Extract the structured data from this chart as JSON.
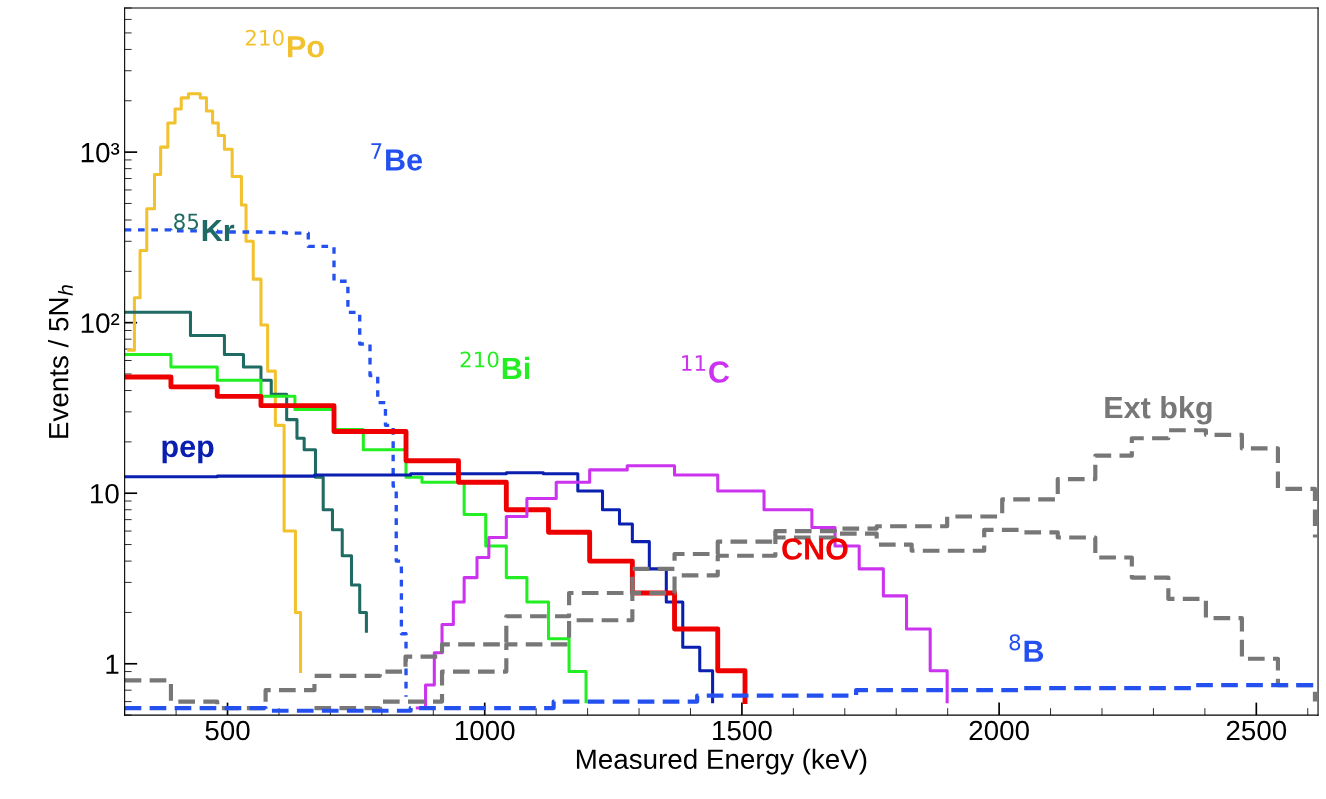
{
  "chart_data": {
    "type": "step",
    "xlabel": "Measured Energy (keV)",
    "ylabel": "Events / 5N$_{h}$",
    "log": "y",
    "grid": false,
    "legend": false,
    "xlim": [
      300,
      2620
    ],
    "xticks": [
      500,
      1000,
      1500,
      2000,
      2500
    ],
    "ylim": [
      0.5,
      7000
    ],
    "yticks": [
      1,
      10,
      {
        "value": 100,
        "label": "10²"
      },
      {
        "value": 1000,
        "label": "10³"
      }
    ],
    "series": [
      {
        "name": "$^{210}$Po",
        "color": "#f2c12e",
        "line_style": "solid",
        "x": [
          308,
          319,
          330,
          343,
          358,
          370,
          384,
          398,
          410,
          424,
          447,
          459,
          471,
          482,
          494,
          509,
          527,
          536,
          550,
          565,
          578,
          593,
          610,
          632,
          642
        ],
        "values": [
          69,
          140,
          265,
          465,
          740,
          1070,
          1480,
          1790,
          2080,
          2200,
          2080,
          1740,
          1480,
          1250,
          1040,
          720,
          490,
          300,
          180,
          97,
          52,
          25,
          6,
          2,
          0.9
        ]
      },
      {
        "name": "$^{7}$Be",
        "color": "#2450f0",
        "line_style": "dotted",
        "x": [
          300,
          390,
          480,
          574,
          613,
          657,
          707,
          734,
          757,
          777,
          792,
          807,
          822,
          828,
          838,
          847
        ],
        "values": [
          350,
          345,
          340,
          338,
          335,
          280,
          175,
          115,
          75,
          49,
          34,
          25,
          11,
          4,
          1.5,
          0.64
        ]
      },
      {
        "name": "$^{85}$Kr",
        "color": "#1f6b63",
        "line_style": "solid",
        "x": [
          300,
          428,
          494,
          531,
          565,
          585,
          615,
          635,
          649,
          671,
          686,
          704,
          723,
          741,
          757,
          770
        ],
        "values": [
          115,
          84,
          65,
          55,
          46,
          38,
          27,
          21,
          18,
          12.4,
          8,
          6.1,
          4.3,
          2.9,
          2.0,
          1.55
        ]
      },
      {
        "name": "$^{210}$Bi",
        "color": "#22ee22",
        "line_style": "solid",
        "x": [
          300,
          390,
          480,
          565,
          631,
          707,
          764,
          847,
          878,
          960,
          1002,
          1042,
          1082,
          1124,
          1164,
          1197
        ],
        "values": [
          65,
          55,
          46,
          37,
          31,
          23.6,
          18,
          12.4,
          11.6,
          7.5,
          4.9,
          3.2,
          2.3,
          1.4,
          0.9,
          0.6
        ]
      },
      {
        "name": "pep",
        "color": "#0a1fb0",
        "line_style": "solid",
        "x": [
          300,
          480,
          669,
          856,
          1042,
          1114,
          1181,
          1229,
          1262,
          1287,
          1320,
          1353,
          1385,
          1418,
          1443
        ],
        "values": [
          12.5,
          12.6,
          12.8,
          13,
          13.2,
          13,
          10.3,
          8,
          6.6,
          5.2,
          3.6,
          2.3,
          1.25,
          0.91,
          0.6
        ]
      },
      {
        "name": "CNO",
        "color": "#ee0000",
        "line_style": "solid",
        "x": [
          300,
          390,
          480,
          565,
          707,
          847,
          949,
          1042,
          1124,
          1204,
          1287,
          1369,
          1453,
          1506
        ],
        "values": [
          48,
          42,
          37,
          32.6,
          23,
          15.5,
          11.6,
          8,
          5.9,
          4.0,
          2.6,
          1.6,
          0.91,
          0.6
        ]
      },
      {
        "name": "$^{11}$C",
        "color": "#cc33ee",
        "line_style": "solid",
        "x": [
          869,
          885,
          902,
          917,
          939,
          960,
          985,
          1008,
          1042,
          1082,
          1139,
          1204,
          1277,
          1369,
          1453,
          1543,
          1636,
          1681,
          1728,
          1775,
          1820,
          1866,
          1899
        ],
        "values": [
          0.55,
          0.75,
          1.16,
          1.7,
          2.3,
          3.2,
          4.2,
          5.5,
          7.3,
          9.3,
          11.6,
          13.7,
          14.5,
          12.8,
          10.3,
          8,
          6.3,
          4.9,
          3.6,
          2.5,
          1.6,
          0.91,
          0.6
        ]
      },
      {
        "name": "Ext bkg",
        "color": "#777777",
        "line_style": "dashed",
        "x": [
          300,
          390,
          480,
          574,
          669,
          796,
          846,
          917,
          1042,
          1164,
          1287,
          1369,
          1453,
          1565,
          1681,
          1762,
          1899,
          2006,
          2114,
          2187,
          2258,
          2329,
          2402,
          2472,
          2542,
          2614
        ],
        "values": [
          0.8,
          0.6,
          0.55,
          0.7,
          0.85,
          0.9,
          1.1,
          1.3,
          1.9,
          2.6,
          3.6,
          4.4,
          5.2,
          6.0,
          6.2,
          6.4,
          7.3,
          9.2,
          12.1,
          16.6,
          21,
          23.4,
          22,
          18.3,
          10.6,
          5.5
        ]
      },
      {
        "color": "#777777",
        "line_style": "dashed",
        "x": [
          669,
          796,
          917,
          1042,
          1164,
          1287,
          1369,
          1453,
          1565,
          1681,
          1762,
          1830,
          1971,
          2042,
          2114,
          2187,
          2258,
          2329,
          2402,
          2472,
          2542,
          2614
        ],
        "values": [
          0.55,
          0.6,
          0.9,
          1.3,
          1.8,
          2.6,
          3.3,
          4.3,
          5.5,
          5.8,
          5.0,
          4.6,
          6.1,
          5.9,
          5.5,
          4.2,
          3.2,
          2.4,
          1.85,
          1.07,
          0.75,
          0.6
        ]
      },
      {
        "name": "$^{8}$B",
        "color": "#2450f0",
        "line_style": "dashed",
        "x": [
          300,
          574,
          856,
          1134,
          1413,
          1722,
          2047,
          2381,
          2614
        ],
        "values": [
          0.55,
          0.53,
          0.55,
          0.6,
          0.65,
          0.7,
          0.72,
          0.75,
          0.78
        ]
      }
    ]
  }
}
